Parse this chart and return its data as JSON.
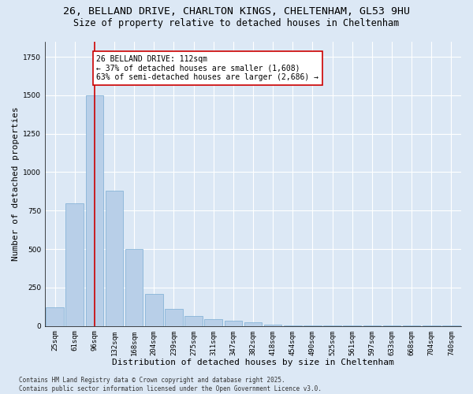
{
  "title_line1": "26, BELLAND DRIVE, CHARLTON KINGS, CHELTENHAM, GL53 9HU",
  "title_line2": "Size of property relative to detached houses in Cheltenham",
  "xlabel": "Distribution of detached houses by size in Cheltenham",
  "ylabel": "Number of detached properties",
  "bar_color": "#b8cfe8",
  "bar_edge_color": "#7aadd4",
  "bg_color": "#dce8f5",
  "grid_color": "#ffffff",
  "categories": [
    "25sqm",
    "61sqm",
    "96sqm",
    "132sqm",
    "168sqm",
    "204sqm",
    "239sqm",
    "275sqm",
    "311sqm",
    "347sqm",
    "382sqm",
    "418sqm",
    "454sqm",
    "490sqm",
    "525sqm",
    "561sqm",
    "597sqm",
    "633sqm",
    "668sqm",
    "704sqm",
    "740sqm"
  ],
  "values": [
    120,
    800,
    1500,
    880,
    500,
    210,
    110,
    65,
    45,
    35,
    25,
    10,
    5,
    5,
    3,
    3,
    2,
    2,
    2,
    2,
    2
  ],
  "vline_x": 2.0,
  "vline_color": "#cc0000",
  "annotation_text": "26 BELLAND DRIVE: 112sqm\n← 37% of detached houses are smaller (1,608)\n63% of semi-detached houses are larger (2,686) →",
  "annotation_box_color": "#ffffff",
  "annotation_box_edge": "#cc0000",
  "footnote": "Contains HM Land Registry data © Crown copyright and database right 2025.\nContains public sector information licensed under the Open Government Licence v3.0.",
  "ylim": [
    0,
    1850
  ],
  "title_fontsize": 9.5,
  "subtitle_fontsize": 8.5,
  "axis_label_fontsize": 8,
  "tick_fontsize": 6.5,
  "annotation_fontsize": 7,
  "footnote_fontsize": 5.5
}
